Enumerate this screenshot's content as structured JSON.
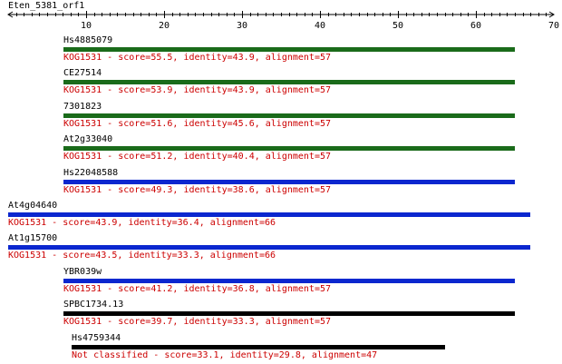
{
  "query": {
    "name": "Eten_5381_orf1",
    "scale_min": 0,
    "scale_max": 70,
    "ticks": [
      10,
      20,
      30,
      40,
      50,
      60,
      70
    ]
  },
  "colors": {
    "green": "#1a6b1a",
    "blue": "#0b27cf",
    "black": "#000000",
    "info_text": "#cc0000"
  },
  "hits": [
    {
      "name": "Hs4885079",
      "start": 7,
      "end": 65,
      "color": "green",
      "info": "KOG1531 - score=55.5, identity=43.9, alignment=57"
    },
    {
      "name": "CE27514",
      "start": 7,
      "end": 65,
      "color": "green",
      "info": "KOG1531 - score=53.9, identity=43.9, alignment=57"
    },
    {
      "name": "7301823",
      "start": 7,
      "end": 65,
      "color": "green",
      "info": "KOG1531 - score=51.6, identity=45.6, alignment=57"
    },
    {
      "name": "At2g33040",
      "start": 7,
      "end": 65,
      "color": "green",
      "info": "KOG1531 - score=51.2, identity=40.4, alignment=57"
    },
    {
      "name": "Hs22048588",
      "start": 7,
      "end": 65,
      "color": "blue",
      "info": "KOG1531 - score=49.3, identity=38.6, alignment=57"
    },
    {
      "name": "At4g04640",
      "start": 0,
      "end": 67,
      "color": "blue",
      "info": "KOG1531 - score=43.9, identity=36.4, alignment=66"
    },
    {
      "name": "At1g15700",
      "start": 0,
      "end": 67,
      "color": "blue",
      "info": "KOG1531 - score=43.5, identity=33.3, alignment=66"
    },
    {
      "name": "YBR039w",
      "start": 7,
      "end": 65,
      "color": "blue",
      "info": "KOG1531 - score=41.2, identity=36.8, alignment=57"
    },
    {
      "name": "SPBC1734.13",
      "start": 7,
      "end": 65,
      "color": "black",
      "info": "KOG1531 - score=39.7, identity=33.3, alignment=57"
    },
    {
      "name": "Hs4759344",
      "start": 8,
      "end": 56,
      "color": "black",
      "info": "Not classified - score=33.1, identity=29.8, alignment=47"
    }
  ]
}
